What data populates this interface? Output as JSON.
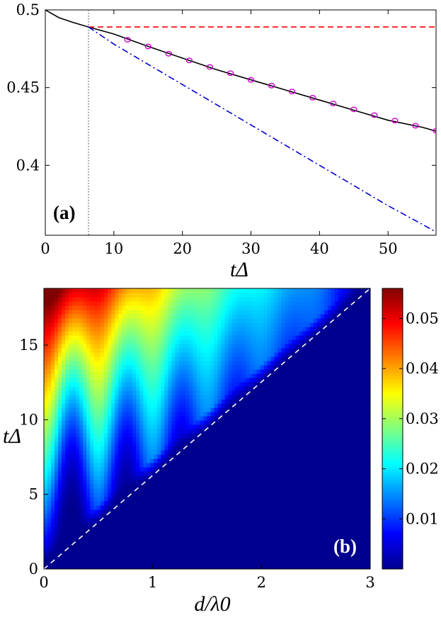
{
  "chart_data": [
    {
      "type": "line",
      "panel_label": "(a)",
      "xlabel": "tΔ",
      "ylabel": "",
      "xlim": [
        0,
        57
      ],
      "ylim": [
        0.355,
        0.5
      ],
      "x_ticks": [
        "0",
        "10",
        "20",
        "30",
        "40",
        "50"
      ],
      "y_ticks": [
        "0.4",
        "0.45",
        "0.5"
      ],
      "vertical_marker_x": 6.3,
      "series": [
        {
          "style": "solid",
          "color": "#000000",
          "x": [
            0,
            2,
            4,
            6.3,
            10,
            15,
            20,
            25,
            30,
            35,
            40,
            45,
            50,
            55,
            57
          ],
          "y": [
            0.5,
            0.495,
            0.492,
            0.489,
            0.4845,
            0.4765,
            0.469,
            0.4615,
            0.455,
            0.4485,
            0.442,
            0.4355,
            0.429,
            0.4245,
            0.422
          ]
        },
        {
          "style": "dashed",
          "color": "#ff0000",
          "x": [
            6.3,
            57
          ],
          "y": [
            0.489,
            0.489
          ]
        },
        {
          "style": "dashdot",
          "color": "#0000cc",
          "x": [
            6.3,
            10,
            15,
            20,
            25,
            30,
            35,
            40,
            45,
            50,
            55,
            57
          ],
          "y": [
            0.489,
            0.478,
            0.465,
            0.452,
            0.439,
            0.426,
            0.413,
            0.4,
            0.387,
            0.374,
            0.362,
            0.357
          ]
        },
        {
          "style": "markers",
          "color": "#cc00cc",
          "x": [
            12,
            15,
            18,
            21,
            24,
            27,
            30,
            33,
            36,
            39,
            42,
            45,
            48,
            51,
            54,
            57
          ],
          "y": [
            0.4808,
            0.4765,
            0.4718,
            0.4675,
            0.4633,
            0.4593,
            0.455,
            0.4513,
            0.4475,
            0.4435,
            0.4398,
            0.436,
            0.4323,
            0.4288,
            0.4255,
            0.4222
          ]
        }
      ]
    },
    {
      "type": "heatmap",
      "panel_label": "(b)",
      "xlabel": "d/λ0",
      "ylabel": "tΔ",
      "xlim": [
        0,
        3
      ],
      "ylim": [
        0,
        18.8
      ],
      "x_ticks": [
        "0",
        "1",
        "2",
        "3"
      ],
      "y_ticks": [
        "0",
        "5",
        "10",
        "15"
      ],
      "colorbar_ticks": [
        "0.01",
        "0.02",
        "0.03",
        "0.04",
        "0.05"
      ],
      "colorbar_range": [
        0,
        0.056
      ],
      "colormap": "jet",
      "boundary_line": {
        "style": "dashed",
        "color": "#ffffff",
        "x": [
          0,
          3
        ],
        "y": [
          0,
          18.8
        ]
      },
      "lobes": [
        {
          "d": 0.0,
          "peak": 0.056
        },
        {
          "d": 0.5,
          "peak": 0.045
        },
        {
          "d": 1.0,
          "peak": 0.034
        },
        {
          "d": 1.5,
          "peak": 0.025
        },
        {
          "d": 2.0,
          "peak": 0.018
        },
        {
          "d": 2.5,
          "peak": 0.013
        }
      ]
    }
  ]
}
